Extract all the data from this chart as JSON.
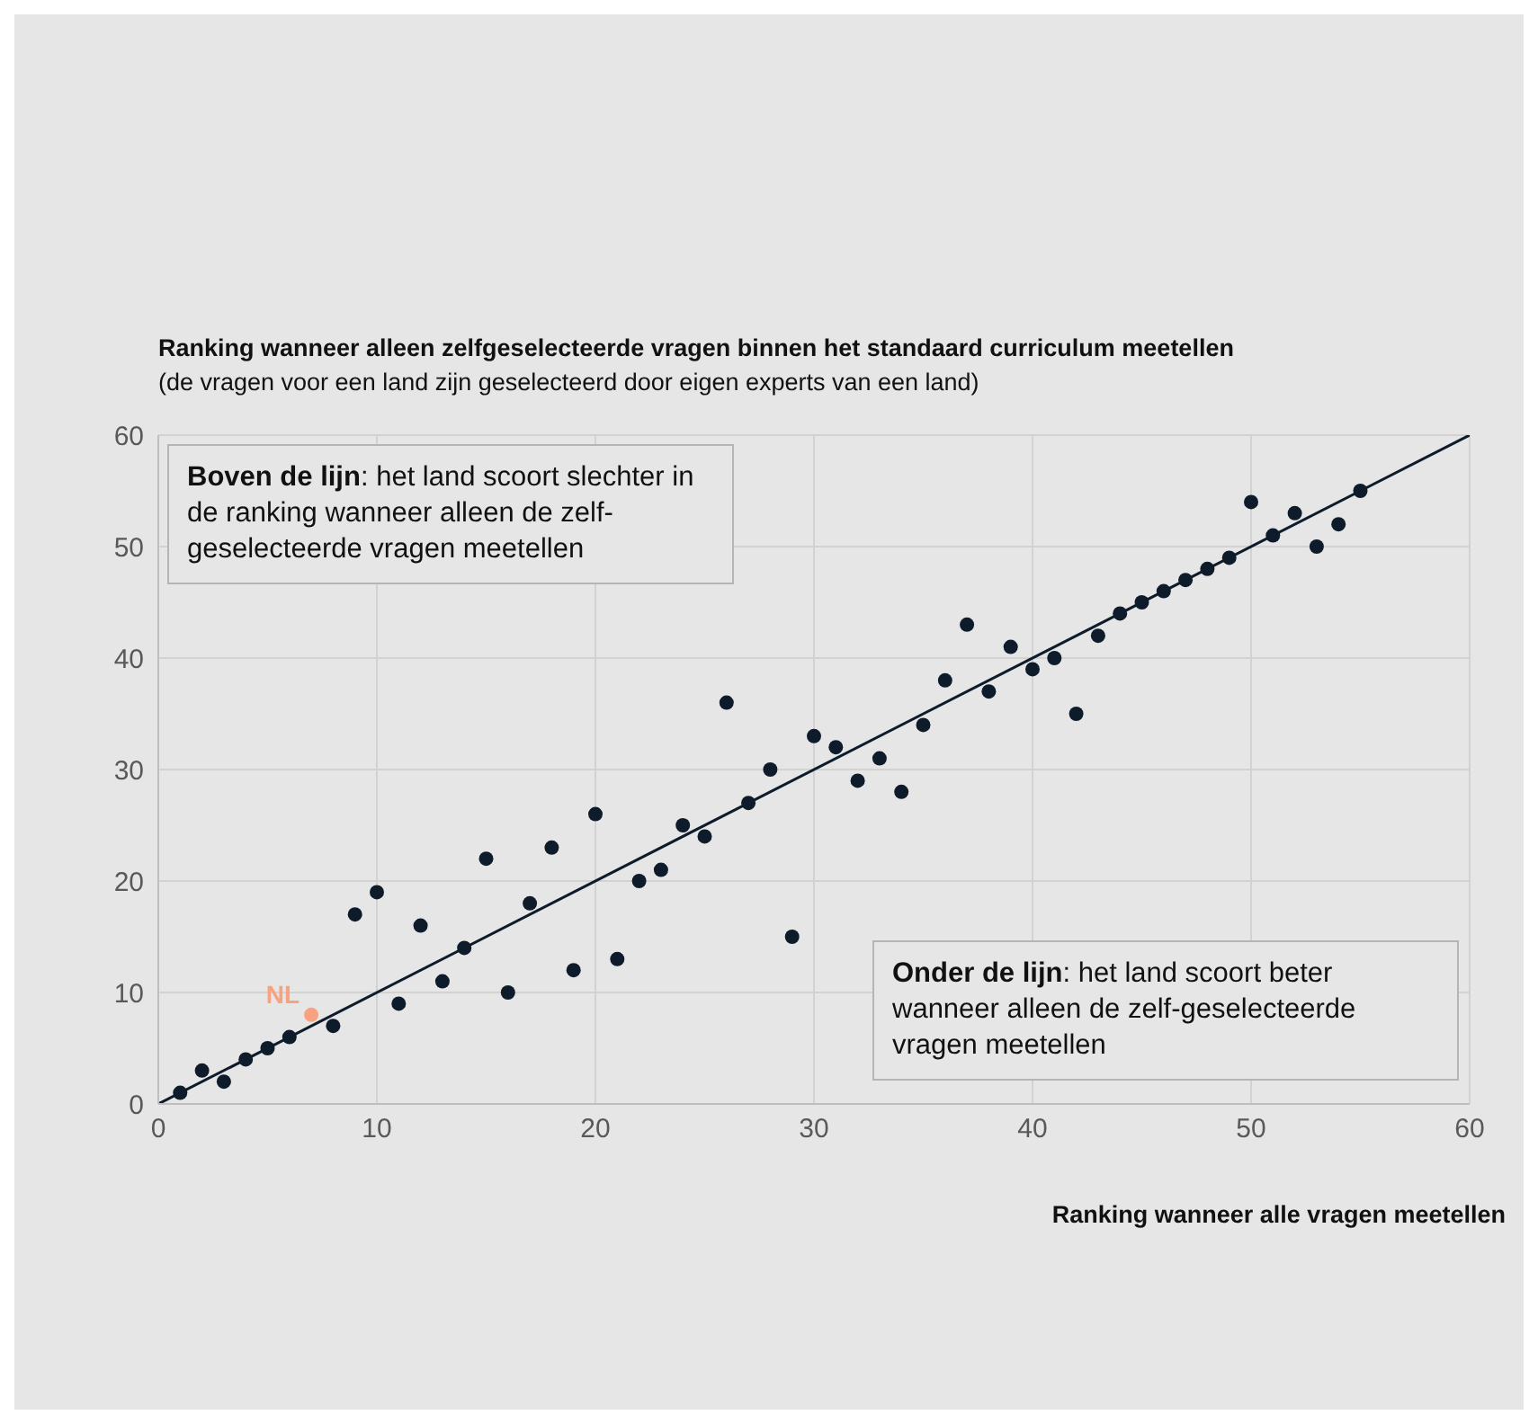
{
  "chart_data": {
    "type": "scatter",
    "title": "Ranking wanneer alleen zelfgeselecteerde vragen binnen het standaard curriculum meetellen",
    "subtitle": "(de vragen voor een land zijn geselecteerd door eigen experts van een land)",
    "xlabel": "Ranking wanneer alle vragen meetellen",
    "annotations": [
      "Boven de lijn: het land scoort slechter in de ranking wanneer alleen de zelf-geselecteerde vragen meetellen",
      "Onder de lijn: het land scoort beter wanneer alleen de zelf-geselecteerde vragen meetellen"
    ],
    "xlim": [
      0,
      60
    ],
    "ylim": [
      0,
      60
    ],
    "xticks": [
      0,
      10,
      20,
      30,
      40,
      50,
      60
    ],
    "yticks": [
      0,
      10,
      20,
      30,
      40,
      50,
      60
    ],
    "grid": true,
    "legend": false,
    "marker": "circle",
    "series": [
      {
        "color": "#0d1b2a",
        "x": [
          1,
          2,
          3,
          4,
          5,
          6,
          8,
          9,
          10,
          11,
          12,
          13,
          14,
          15,
          16,
          17,
          18,
          19,
          20,
          21,
          22,
          23,
          24,
          25,
          26,
          27,
          28,
          29,
          30,
          31,
          32,
          33,
          34,
          35,
          36,
          37,
          38,
          39,
          40,
          41,
          42,
          43,
          44,
          45,
          46,
          47,
          48,
          49,
          50,
          51,
          52,
          53,
          54,
          55
        ],
        "values": [
          1,
          3,
          2,
          4,
          5,
          6,
          7,
          17,
          19,
          9,
          16,
          11,
          14,
          22,
          10,
          18,
          23,
          12,
          26,
          13,
          20,
          21,
          25,
          24,
          36,
          27,
          30,
          15,
          33,
          32,
          29,
          31,
          28,
          34,
          38,
          43,
          37,
          41,
          39,
          40,
          35,
          42,
          44,
          45,
          46,
          47,
          48,
          49,
          54,
          51,
          53,
          50,
          52,
          55
        ]
      },
      {
        "name": "NL",
        "color": "#f8a27f",
        "x": [
          7
        ],
        "values": [
          8
        ]
      },
      {
        "type": "line",
        "color": "#0d1b2a",
        "x": [
          0,
          60
        ],
        "values": [
          0,
          60
        ],
        "line_style": "solid",
        "marker": "none"
      }
    ]
  }
}
